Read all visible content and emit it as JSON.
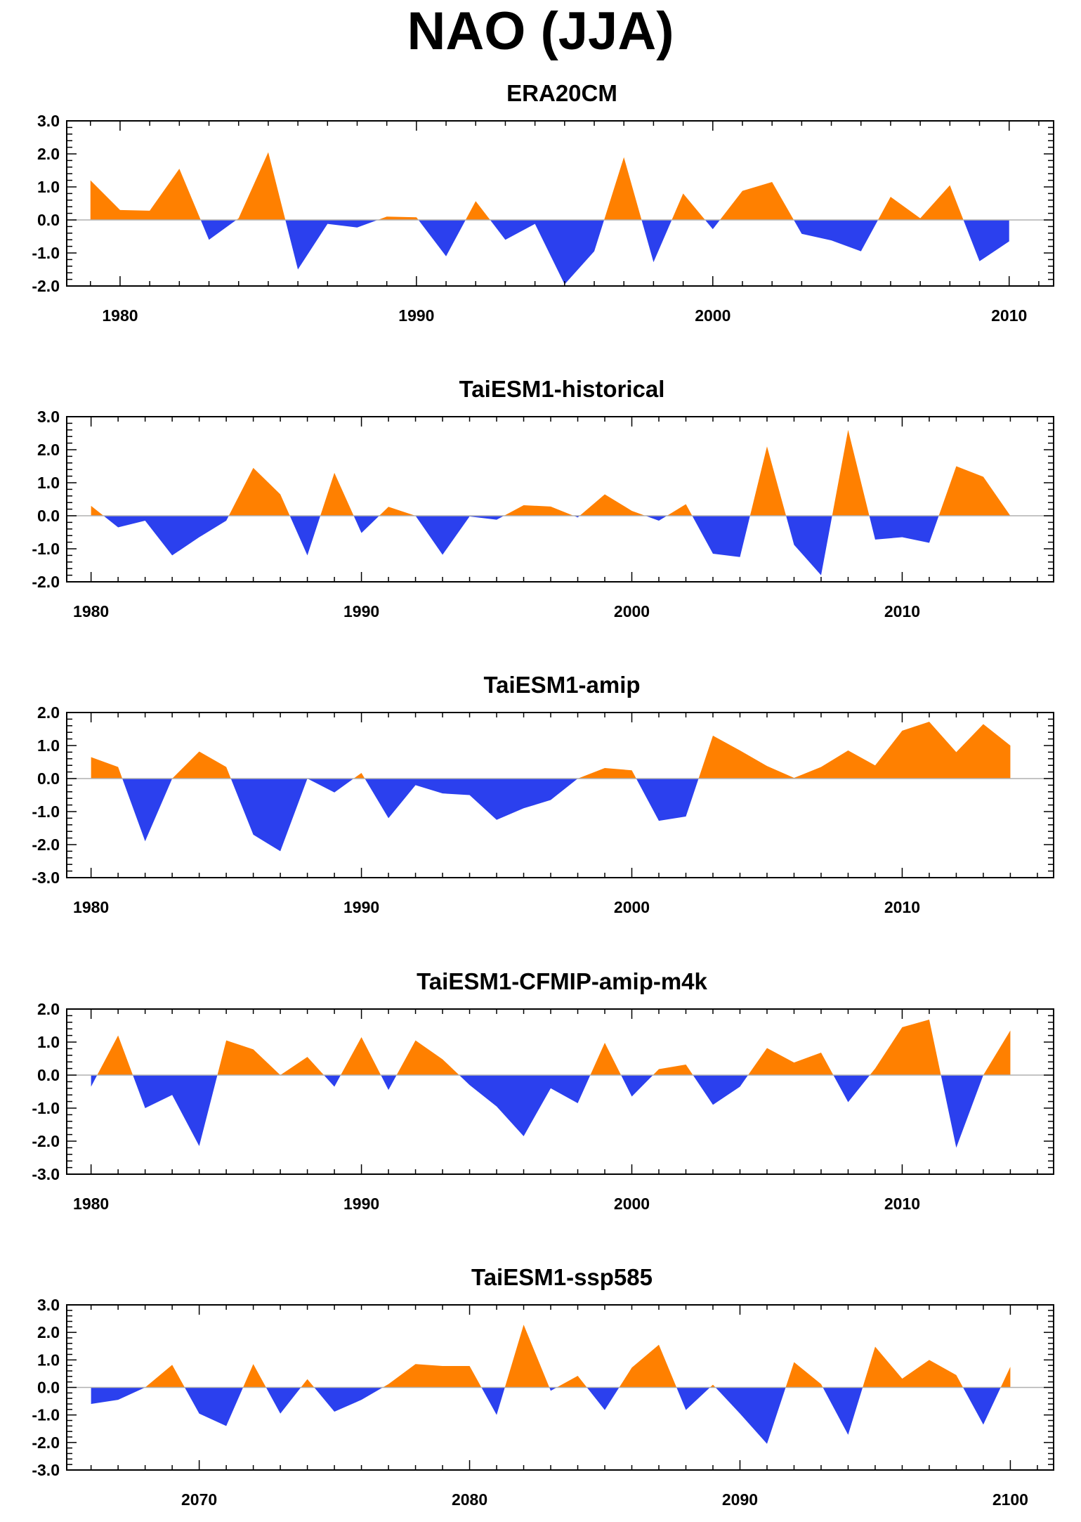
{
  "title": "NAO (JJA)",
  "colors": {
    "positive": "#ff8000",
    "negative": "#2b40ee",
    "axis": "#000000",
    "zero_line": "#b0b0b0"
  },
  "chart_data": [
    {
      "type": "area",
      "title": "ERA20CM",
      "xlabel": "",
      "ylabel": "",
      "x_start": 1979,
      "xlim": [
        1978.2,
        2011.5
      ],
      "ylim": [
        -2.0,
        3.0
      ],
      "xticks": [
        1980,
        1990,
        2000,
        2010
      ],
      "yticks": [
        "3.0",
        "2.0",
        "1.0",
        "0.0",
        "-1.0",
        "-2.0"
      ],
      "grid": false,
      "values": [
        1.2,
        0.3,
        0.28,
        1.55,
        -0.6,
        0.05,
        2.05,
        -1.5,
        -0.12,
        -0.23,
        0.1,
        0.08,
        -1.1,
        0.57,
        -0.6,
        -0.12,
        -1.95,
        -0.95,
        1.9,
        -1.28,
        0.8,
        -0.28,
        0.88,
        1.15,
        -0.42,
        -0.62,
        -0.95,
        0.7,
        0.05,
        1.05,
        -1.25,
        -0.65
      ]
    },
    {
      "type": "area",
      "title": "TaiESM1-historical",
      "xlabel": "",
      "ylabel": "",
      "x_start": 1980,
      "xlim": [
        1979.1,
        2015.6
      ],
      "ylim": [
        -2.0,
        3.0
      ],
      "xticks": [
        1980,
        1990,
        2000,
        2010
      ],
      "yticks": [
        "3.0",
        "2.0",
        "1.0",
        "0.0",
        "-1.0",
        "-2.0"
      ],
      "grid": false,
      "values": [
        0.3,
        -0.35,
        -0.15,
        -1.2,
        -0.65,
        -0.15,
        1.45,
        0.65,
        -1.2,
        1.3,
        -0.52,
        0.27,
        0.0,
        -1.18,
        -0.02,
        -0.12,
        0.32,
        0.28,
        -0.05,
        0.65,
        0.15,
        -0.15,
        0.35,
        -1.15,
        -1.25,
        2.1,
        -0.88,
        -1.8,
        2.6,
        -0.72,
        -0.65,
        -0.82,
        1.5,
        1.18,
        0.0
      ]
    },
    {
      "type": "area",
      "title": "TaiESM1-amip",
      "xlabel": "",
      "ylabel": "",
      "x_start": 1980,
      "xlim": [
        1979.1,
        2015.6
      ],
      "ylim": [
        -3.0,
        2.0
      ],
      "xticks": [
        1980,
        1990,
        2000,
        2010
      ],
      "yticks": [
        "2.0",
        "1.0",
        "0.0",
        "-1.0",
        "-2.0",
        "-3.0"
      ],
      "grid": false,
      "values": [
        0.65,
        0.35,
        -1.9,
        0.0,
        0.82,
        0.35,
        -1.7,
        -2.2,
        0.0,
        -0.42,
        0.17,
        -1.2,
        -0.2,
        -0.45,
        -0.5,
        -1.25,
        -0.9,
        -0.65,
        0.0,
        0.32,
        0.25,
        -1.28,
        -1.15,
        1.3,
        0.85,
        0.38,
        0.02,
        0.35,
        0.85,
        0.4,
        1.45,
        1.72,
        0.8,
        1.65,
        1.0
      ]
    },
    {
      "type": "area",
      "title": "TaiESM1-CFMIP-amip-m4k",
      "xlabel": "",
      "ylabel": "",
      "x_start": 1980,
      "xlim": [
        1979.1,
        2015.6
      ],
      "ylim": [
        -3.0,
        2.0
      ],
      "xticks": [
        1980,
        1990,
        2000,
        2010
      ],
      "yticks": [
        "2.0",
        "1.0",
        "0.0",
        "-1.0",
        "-2.0",
        "-3.0"
      ],
      "grid": false,
      "values": [
        -0.35,
        1.2,
        -1.0,
        -0.6,
        -2.15,
        1.05,
        0.78,
        0.0,
        0.55,
        -0.35,
        1.15,
        -0.45,
        1.05,
        0.48,
        -0.3,
        -0.95,
        -1.85,
        -0.4,
        -0.85,
        0.98,
        -0.65,
        0.18,
        0.32,
        -0.9,
        -0.35,
        0.82,
        0.38,
        0.68,
        -0.82,
        0.2,
        1.45,
        1.68,
        -2.2,
        0.0,
        1.35
      ]
    },
    {
      "type": "area",
      "title": "TaiESM1-ssp585",
      "xlabel": "",
      "ylabel": "",
      "x_start": 2066,
      "xlim": [
        2065.1,
        2101.6
      ],
      "ylim": [
        -3.0,
        3.0
      ],
      "xticks": [
        2070,
        2080,
        2090,
        2100
      ],
      "yticks": [
        "3.0",
        "2.0",
        "1.0",
        "0.0",
        "-1.0",
        "-2.0",
        "-3.0"
      ],
      "grid": false,
      "values": [
        -0.6,
        -0.45,
        0.0,
        0.82,
        -0.95,
        -1.4,
        0.85,
        -0.95,
        0.3,
        -0.88,
        -0.45,
        0.12,
        0.85,
        0.78,
        0.78,
        -1.0,
        2.28,
        -0.12,
        0.42,
        -0.82,
        0.72,
        1.55,
        -0.82,
        0.1,
        -0.95,
        -2.05,
        0.92,
        0.12,
        -1.72,
        1.48,
        0.32,
        1.0,
        0.45,
        -1.35,
        0.75
      ]
    }
  ]
}
